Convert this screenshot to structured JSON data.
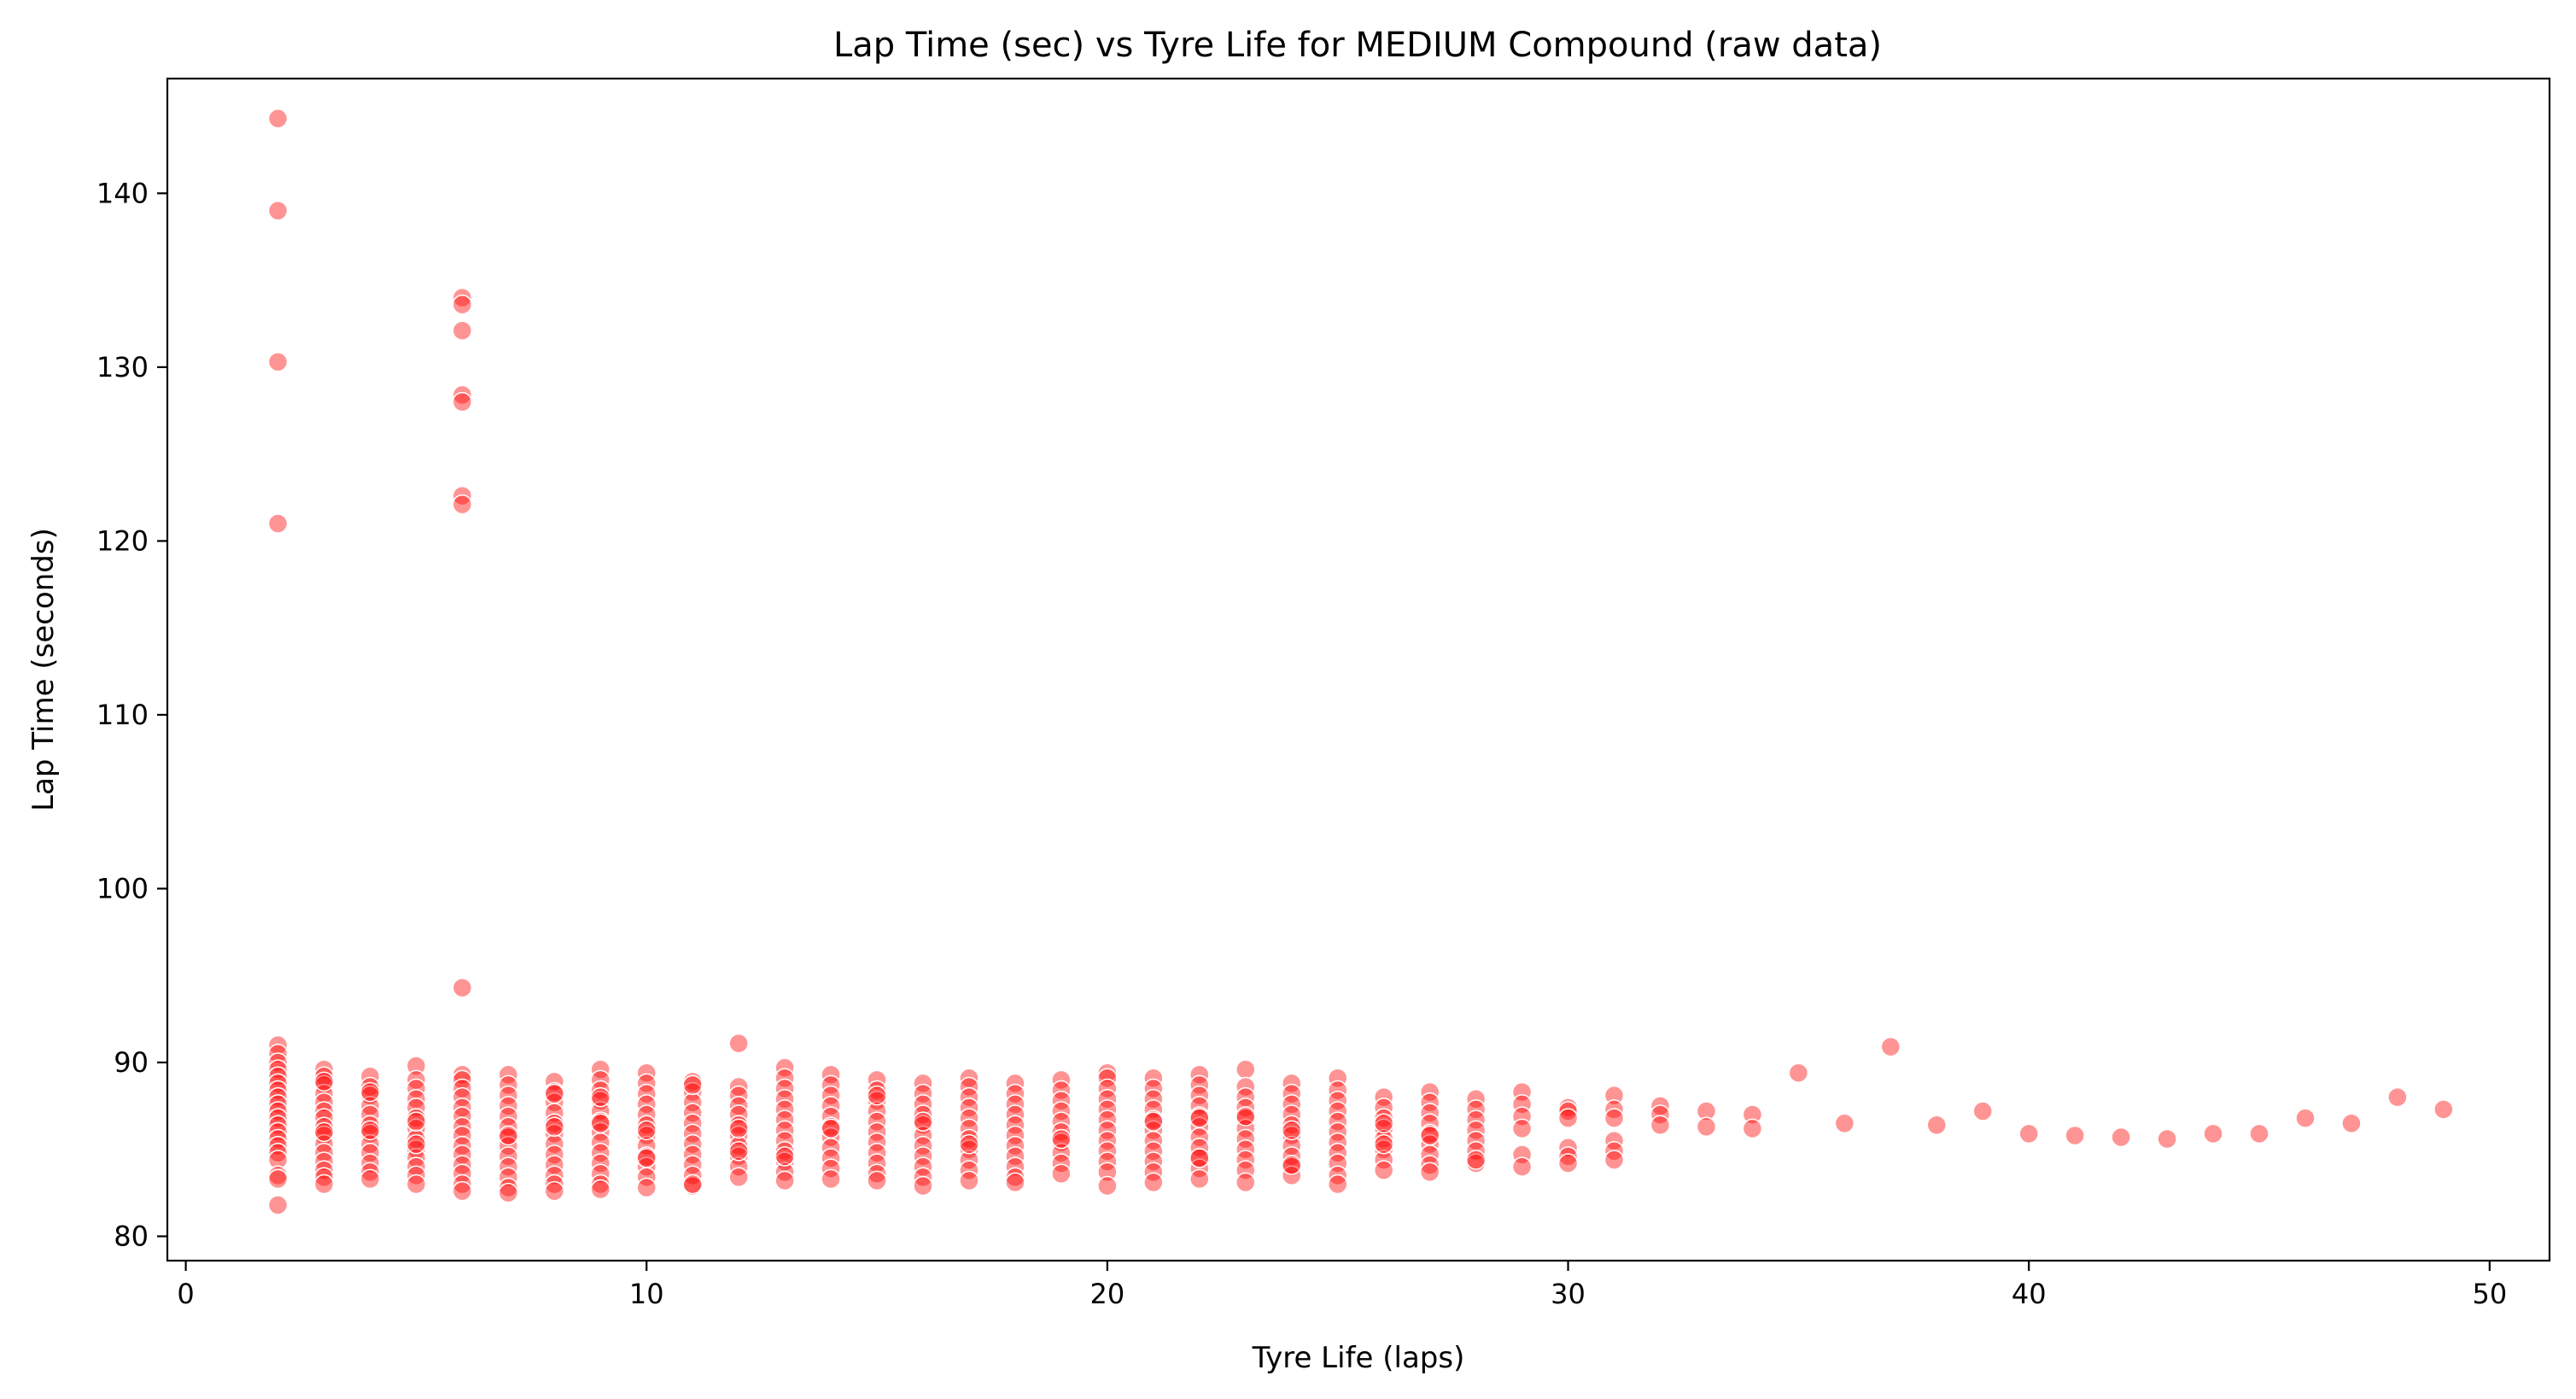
{
  "chart_data": {
    "type": "scatter",
    "title": "Lap Time (sec) vs Tyre Life for MEDIUM Compound (raw data)",
    "xlabel": "Tyre Life (laps)",
    "ylabel": "Lap Time (seconds)",
    "xlim": [
      -0.4,
      51.3
    ],
    "ylim": [
      78.6,
      146.6
    ],
    "xticks": [
      0,
      10,
      20,
      30,
      40,
      50
    ],
    "yticks": [
      80,
      90,
      100,
      110,
      120,
      130,
      140
    ],
    "grid": false,
    "marker_color": "#ff0000",
    "marker_alpha": 0.42,
    "series": [
      {
        "x": [
          2,
          2,
          2,
          2,
          2,
          2,
          2,
          2,
          2,
          2,
          2,
          2,
          2,
          2,
          2,
          2,
          2,
          2,
          2,
          2,
          2,
          2,
          2,
          2,
          3,
          3,
          3,
          3,
          3,
          3,
          3,
          3,
          3,
          3,
          3,
          3,
          3,
          3,
          3,
          3,
          3,
          4,
          4,
          4,
          4,
          4,
          4,
          4,
          4,
          4,
          4,
          4,
          4,
          4,
          4,
          5,
          5,
          5,
          5,
          5,
          5,
          5,
          5,
          5,
          5,
          5,
          5,
          5,
          5,
          5,
          6,
          6,
          6,
          6,
          6,
          6,
          6,
          6,
          6,
          6,
          6,
          6,
          6,
          6,
          6,
          6,
          6,
          6,
          6,
          6,
          6,
          6,
          7,
          7,
          7,
          7,
          7,
          7,
          7,
          7,
          7,
          7,
          7,
          7,
          7,
          7,
          8,
          8,
          8,
          8,
          8,
          8,
          8,
          8,
          8,
          8,
          8,
          8,
          8,
          8,
          9,
          9,
          9,
          9,
          9,
          9,
          9,
          9,
          9,
          9,
          9,
          9,
          9,
          9,
          9,
          10,
          10,
          10,
          10,
          10,
          10,
          10,
          10,
          10,
          10,
          10,
          10,
          10,
          10,
          11,
          11,
          11,
          11,
          11,
          11,
          11,
          11,
          11,
          11,
          11,
          11,
          11,
          12,
          12,
          12,
          12,
          12,
          12,
          12,
          12,
          12,
          12,
          12,
          12,
          12,
          13,
          13,
          13,
          13,
          13,
          13,
          13,
          13,
          13,
          13,
          13,
          13,
          13,
          14,
          14,
          14,
          14,
          14,
          14,
          14,
          14,
          14,
          14,
          14,
          14,
          15,
          15,
          15,
          15,
          15,
          15,
          15,
          15,
          15,
          15,
          15,
          15,
          16,
          16,
          16,
          16,
          16,
          16,
          16,
          16,
          16,
          16,
          16,
          16,
          17,
          17,
          17,
          17,
          17,
          17,
          17,
          17,
          17,
          17,
          17,
          17,
          18,
          18,
          18,
          18,
          18,
          18,
          18,
          18,
          18,
          18,
          18,
          19,
          19,
          19,
          19,
          19,
          19,
          19,
          19,
          19,
          19,
          19,
          20,
          20,
          20,
          20,
          20,
          20,
          20,
          20,
          20,
          20,
          20,
          20,
          21,
          21,
          21,
          21,
          21,
          21,
          21,
          21,
          21,
          21,
          21,
          21,
          22,
          22,
          22,
          22,
          22,
          22,
          22,
          22,
          22,
          22,
          22,
          22,
          22,
          23,
          23,
          23,
          23,
          23,
          23,
          23,
          23,
          23,
          23,
          23,
          23,
          24,
          24,
          24,
          24,
          24,
          24,
          24,
          24,
          24,
          24,
          24,
          24,
          25,
          25,
          25,
          25,
          25,
          25,
          25,
          25,
          25,
          25,
          25,
          26,
          26,
          26,
          26,
          26,
          26,
          26,
          26,
          26,
          26,
          27,
          27,
          27,
          27,
          27,
          27,
          27,
          27,
          27,
          27,
          28,
          28,
          28,
          28,
          28,
          28,
          28,
          28,
          29,
          29,
          29,
          29,
          29,
          29,
          30,
          30,
          30,
          30,
          30,
          30,
          31,
          31,
          31,
          31,
          31,
          31,
          32,
          32,
          32,
          33,
          33,
          34,
          34,
          35,
          36,
          37,
          38,
          39,
          40,
          41,
          42,
          43,
          44,
          45,
          46,
          47,
          48,
          49
        ],
        "y": [
          144.3,
          139.0,
          130.3,
          121.0,
          91.0,
          90.5,
          90.0,
          89.6,
          89.2,
          88.8,
          88.4,
          88.0,
          87.6,
          87.2,
          86.8,
          86.4,
          86.0,
          85.6,
          85.2,
          84.8,
          84.4,
          83.5,
          83.3,
          81.8,
          89.6,
          89.2,
          88.7,
          88.2,
          87.7,
          87.2,
          86.8,
          86.3,
          85.8,
          85.3,
          84.8,
          84.3,
          83.8,
          83.4,
          83.0,
          88.9,
          86.0,
          89.2,
          88.6,
          88.1,
          87.5,
          87.0,
          86.4,
          85.9,
          85.3,
          84.8,
          84.2,
          83.7,
          83.3,
          88.3,
          86.1,
          89.8,
          89.0,
          88.5,
          87.9,
          87.4,
          86.8,
          86.2,
          85.6,
          85.0,
          84.5,
          84.0,
          83.5,
          83.0,
          86.6,
          85.3,
          134.0,
          133.6,
          132.1,
          128.4,
          128.0,
          122.6,
          122.1,
          94.3,
          89.3,
          89.0,
          88.5,
          88.0,
          87.4,
          86.9,
          86.3,
          85.8,
          85.2,
          84.7,
          84.1,
          83.6,
          83.0,
          82.6,
          89.3,
          88.7,
          88.1,
          87.5,
          86.9,
          86.3,
          85.7,
          85.2,
          84.6,
          84.0,
          83.4,
          82.8,
          82.5,
          85.8,
          88.9,
          88.3,
          87.7,
          87.1,
          86.5,
          85.9,
          85.3,
          84.7,
          84.1,
          83.5,
          83.0,
          82.6,
          88.2,
          86.3,
          89.6,
          89.0,
          88.4,
          87.8,
          87.2,
          86.6,
          86.0,
          85.4,
          84.8,
          84.2,
          83.6,
          83.0,
          82.7,
          88.0,
          86.5,
          89.4,
          88.8,
          88.2,
          87.6,
          87.0,
          86.4,
          85.8,
          85.2,
          84.6,
          84.0,
          83.4,
          82.8,
          86.1,
          84.5,
          88.9,
          88.3,
          87.7,
          87.1,
          86.5,
          85.9,
          85.3,
          84.7,
          84.1,
          83.5,
          82.9,
          88.7,
          83.0,
          91.1,
          88.6,
          88.1,
          87.5,
          87.0,
          86.4,
          85.8,
          85.2,
          84.6,
          84.0,
          83.4,
          86.2,
          84.9,
          89.7,
          89.1,
          88.5,
          87.9,
          87.3,
          86.7,
          86.1,
          85.5,
          84.9,
          84.3,
          83.7,
          83.2,
          84.6,
          89.3,
          88.7,
          88.1,
          87.5,
          86.9,
          86.3,
          85.7,
          85.1,
          84.5,
          83.9,
          83.3,
          86.2,
          89.0,
          88.4,
          87.8,
          87.2,
          86.6,
          86.0,
          85.4,
          84.8,
          84.2,
          83.6,
          83.2,
          88.1,
          88.8,
          88.2,
          87.6,
          87.0,
          86.4,
          85.8,
          85.2,
          84.6,
          84.0,
          83.4,
          82.9,
          86.6,
          89.1,
          88.6,
          88.0,
          87.4,
          86.8,
          86.2,
          85.6,
          85.0,
          84.4,
          83.8,
          83.2,
          85.3,
          88.8,
          88.2,
          87.6,
          87.0,
          86.4,
          85.8,
          85.2,
          84.6,
          84.0,
          83.4,
          83.1,
          89.0,
          88.4,
          87.8,
          87.2,
          86.6,
          86.0,
          85.4,
          84.8,
          84.2,
          83.6,
          85.6,
          89.4,
          89.1,
          88.5,
          87.9,
          87.3,
          86.7,
          86.1,
          85.5,
          84.9,
          84.3,
          83.7,
          82.9,
          89.1,
          88.5,
          87.9,
          87.3,
          86.7,
          86.1,
          85.5,
          84.9,
          84.3,
          83.7,
          83.1,
          86.6,
          89.3,
          88.7,
          88.1,
          87.5,
          86.9,
          86.3,
          85.7,
          85.1,
          84.5,
          83.9,
          83.3,
          84.5,
          86.8,
          89.6,
          88.6,
          88.0,
          87.4,
          86.8,
          86.2,
          85.6,
          85.0,
          84.4,
          83.8,
          83.1,
          86.9,
          88.8,
          88.2,
          87.6,
          87.0,
          86.4,
          85.8,
          85.2,
          84.6,
          84.0,
          83.5,
          86.1,
          84.1,
          89.1,
          88.4,
          87.8,
          87.2,
          86.6,
          86.0,
          85.4,
          84.8,
          84.2,
          83.5,
          83.0,
          88.0,
          87.4,
          86.8,
          86.2,
          85.6,
          85.0,
          84.4,
          83.8,
          85.3,
          86.5,
          88.3,
          87.7,
          87.1,
          86.5,
          85.9,
          85.3,
          84.7,
          84.1,
          83.7,
          85.8,
          87.9,
          87.3,
          86.7,
          86.1,
          85.5,
          84.9,
          84.2,
          84.4,
          88.3,
          87.6,
          86.9,
          86.2,
          84.7,
          84.0,
          87.4,
          87.2,
          86.8,
          85.1,
          84.6,
          84.2,
          88.1,
          87.3,
          86.8,
          85.5,
          84.9,
          84.4,
          87.5,
          87.0,
          86.4,
          87.2,
          86.3,
          87.0,
          86.2,
          89.4,
          86.5,
          90.9,
          86.4,
          87.2,
          85.9,
          85.8,
          85.7,
          85.6,
          85.9,
          85.9,
          86.8,
          86.5,
          88.0,
          87.3
        ]
      }
    ]
  }
}
